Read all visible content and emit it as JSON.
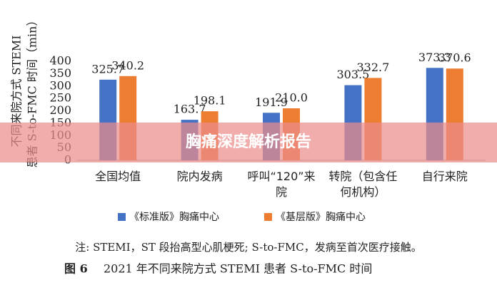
{
  "chart_data": {
    "type": "bar",
    "ylabel": [
      "不同来院方式 STEMI",
      "患者 S-to-FMC 时间（min）"
    ],
    "categories": [
      "全国均值",
      "院内发病",
      "呼叫“120”来院",
      "转院（包含任何机构）",
      "自行来院"
    ],
    "series": [
      {
        "name": "《标准版》胸痛中心",
        "color": "#4472c4",
        "values": [
          325.7,
          163.7,
          191.9,
          303.5,
          373.3
        ],
        "value_labels": [
          "325.7",
          "163.7",
          "191.9",
          "303.5",
          "373.3"
        ]
      },
      {
        "name": "《基层版》胸痛中心",
        "color": "#ed7d31",
        "values": [
          340.2,
          198.1,
          210.0,
          332.7,
          370.6
        ],
        "value_labels": [
          "340.2",
          "198.1",
          "210.0",
          "332.7",
          "370.6"
        ]
      }
    ],
    "ylim": [
      0,
      400
    ],
    "yticks": [
      0,
      50,
      100,
      150,
      200,
      250,
      300,
      350,
      400
    ],
    "grid": false
  },
  "banner": "胸痛深度解析报告",
  "note": "注: STEMI，ST 段抬高型心肌梗死; S-to-FMC，发病至首次医疗接触。",
  "caption_label": "图 6",
  "caption": "2021 年不同来院方式 STEMI 患者 S-to-FMC 时间"
}
